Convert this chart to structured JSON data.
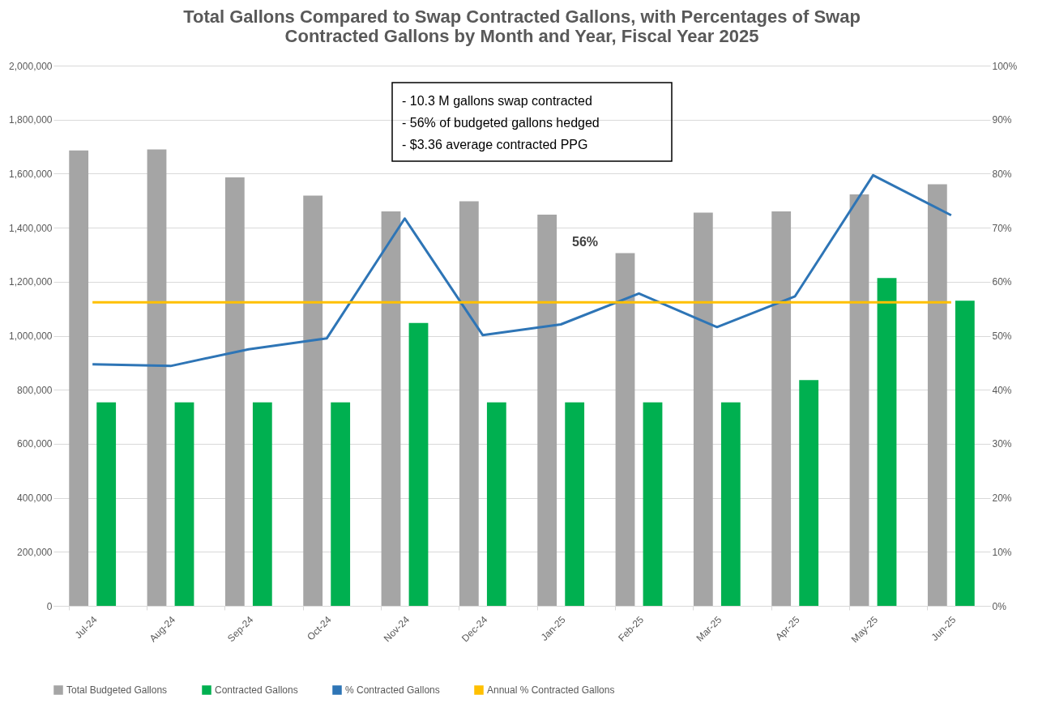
{
  "chart_data": {
    "type": "bar",
    "title": "Total Gallons Compared to Swap Contracted Gallons, with Percentages of Swap Contracted Gallons by Month and Year, Fiscal Year 2025",
    "categories": [
      "Jul-24",
      "Aug-24",
      "Sep-24",
      "Oct-24",
      "Nov-24",
      "Dec-24",
      "Jan-25",
      "Feb-25",
      "Mar-25",
      "Apr-25",
      "May-25",
      "Jun-25"
    ],
    "series": [
      {
        "name": "Total Budgeted Gallons",
        "type": "bar",
        "color": "#a5a5a5",
        "values": [
          1686000,
          1690000,
          1586000,
          1519000,
          1460000,
          1498000,
          1448000,
          1306000,
          1456000,
          1460000,
          1523000,
          1561000
        ]
      },
      {
        "name": "Contracted Gallons",
        "type": "bar",
        "color": "#00b050",
        "values": [
          753000,
          753000,
          753000,
          753000,
          1047000,
          753000,
          753000,
          753000,
          753000,
          836000,
          1214000,
          1130000
        ]
      },
      {
        "name": "% Contracted Gallons",
        "type": "line",
        "axis": "y2",
        "color": "#2e75b6",
        "values": [
          44.7,
          44.4,
          47.5,
          49.5,
          71.7,
          50.1,
          52.1,
          57.8,
          51.6,
          57.3,
          79.7,
          72.3
        ]
      },
      {
        "name": "Annual % Contracted Gallons",
        "type": "line",
        "axis": "y2",
        "color": "#ffc000",
        "values": [
          56.2,
          56.2,
          56.2,
          56.2,
          56.2,
          56.2,
          56.2,
          56.2,
          56.2,
          56.2,
          56.2,
          56.2
        ]
      }
    ],
    "ylim": [
      0,
      2000000
    ],
    "yticks": [
      0,
      {
        "value": 200000,
        "label": "200,000"
      },
      {
        "value": 400000,
        "label": "400,000"
      },
      {
        "value": 600000,
        "label": "600,000"
      },
      {
        "value": 800000,
        "label": "800,000"
      },
      {
        "value": 1000000,
        "label": "1,000,000"
      },
      {
        "value": 1200000,
        "label": "1,200,000"
      },
      {
        "value": 1400000,
        "label": "1,400,000"
      },
      {
        "value": 1600000,
        "label": "1,600,000"
      },
      {
        "value": 1800000,
        "label": "1,800,000"
      },
      {
        "value": 2000000,
        "label": "2,000,000"
      }
    ],
    "y2lim": [
      0,
      100
    ],
    "y2ticks": [
      {
        "value": 0,
        "label": "0%"
      },
      {
        "value": 10,
        "label": "10%"
      },
      {
        "value": 20,
        "label": "20%"
      },
      {
        "value": 30,
        "label": "30%"
      },
      {
        "value": 40,
        "label": "40%"
      },
      {
        "value": 50,
        "label": "50%"
      },
      {
        "value": 60,
        "label": "60%"
      },
      {
        "value": 70,
        "label": "70%"
      },
      {
        "value": 80,
        "label": "80%"
      },
      {
        "value": 90,
        "label": "90%"
      },
      {
        "value": 100,
        "label": "100%"
      }
    ],
    "annotations": [
      "- 10.3 M gallons swap contracted",
      "- 56% of budgeted gallons hedged",
      "- $3.36 average contracted PPG",
      "56%"
    ],
    "grid": "y",
    "legend": "bottom"
  }
}
